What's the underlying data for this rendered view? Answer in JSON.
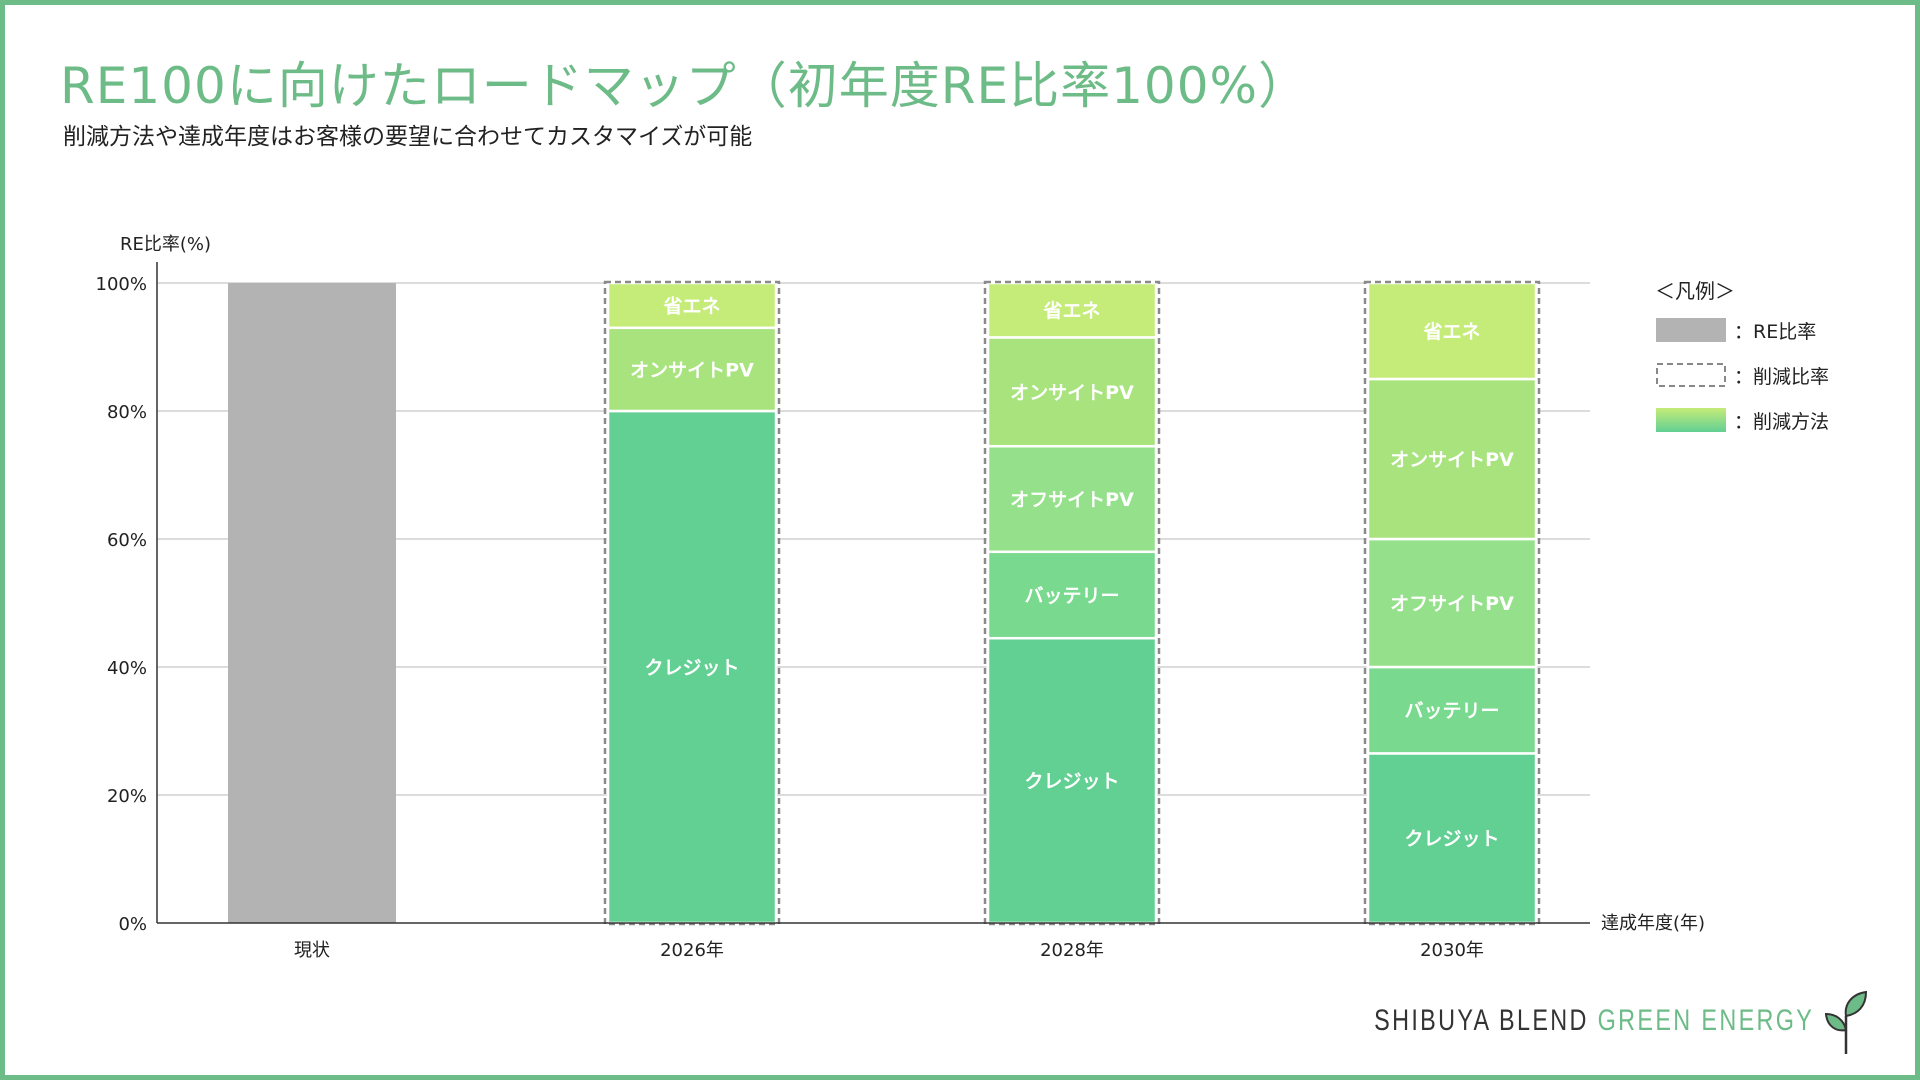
{
  "title": "RE100に向けたロードマップ（初年度RE比率100%）",
  "subtitle": "削減方法や達成年度はお客様の要望に合わせてカスタマイズが可能",
  "legend": {
    "title": "＜凡例＞",
    "items": [
      {
        "label": "：RE比率",
        "kind": "gray"
      },
      {
        "label": "：削減比率",
        "kind": "dashed"
      },
      {
        "label": "：削減方法",
        "kind": "gradient"
      }
    ]
  },
  "logo": {
    "part1": "SHIBUYA BLEND ",
    "part2": "GREEN ENERGY"
  },
  "colors": {
    "accent": "#6dbb87",
    "gray_bar": "#b3b3b3",
    "credit": "#62cf93",
    "battery": "#79d98e",
    "offsite": "#95e08a",
    "onsite": "#a8e37e",
    "energy_saving": "#c5ec78"
  },
  "chart_data": {
    "type": "stacked-bar",
    "title": "RE100に向けたロードマップ（初年度RE比率100%）",
    "ylabel": "RE比率(%)",
    "xlabel": "達成年度(年)",
    "ylim": [
      0,
      100
    ],
    "yticks": [
      "0%",
      "20%",
      "40%",
      "60%",
      "80%",
      "100%"
    ],
    "bars": [
      {
        "category": "現状",
        "type": "re",
        "segments": [
          {
            "name": "",
            "value": 100
          }
        ]
      },
      {
        "category": "2026年",
        "type": "reduction",
        "segments": [
          {
            "name": "クレジット",
            "value": 80
          },
          {
            "name": "オンサイトPV",
            "value": 13
          },
          {
            "name": "省エネ",
            "value": 7
          }
        ]
      },
      {
        "category": "2028年",
        "type": "reduction",
        "segments": [
          {
            "name": "クレジット",
            "value": 44.5
          },
          {
            "name": "バッテリー",
            "value": 13.5
          },
          {
            "name": "オフサイトPV",
            "value": 16.5
          },
          {
            "name": "オンサイトPV",
            "value": 17
          },
          {
            "name": "省エネ",
            "value": 8.5
          }
        ]
      },
      {
        "category": "2030年",
        "type": "reduction",
        "segments": [
          {
            "name": "クレジット",
            "value": 26.5
          },
          {
            "name": "バッテリー",
            "value": 13.5
          },
          {
            "name": "オフサイトPV",
            "value": 20
          },
          {
            "name": "オンサイトPV",
            "value": 25
          },
          {
            "name": "省エネ",
            "value": 15
          }
        ]
      }
    ]
  }
}
